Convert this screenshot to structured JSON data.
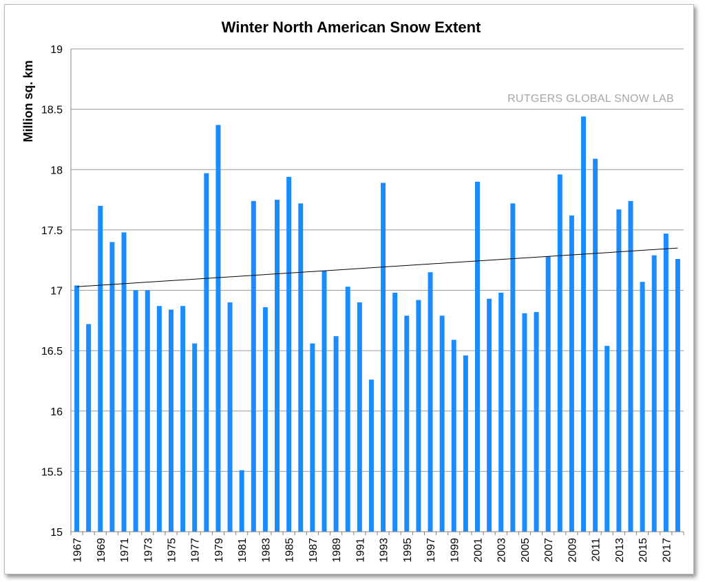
{
  "chart_data": {
    "type": "bar",
    "title": "Winter North American Snow Extent",
    "ylabel": "Million sq. km",
    "xlabel": "",
    "annotation": "RUTGERS GLOBAL SNOW LAB",
    "ylim": [
      15,
      19
    ],
    "yticks": [
      15,
      15.5,
      16,
      16.5,
      17,
      17.5,
      18,
      18.5,
      19
    ],
    "grid": true,
    "bar_color": "#1a8cff",
    "trendline": {
      "color": "#000000",
      "start": 17.03,
      "end": 17.35
    },
    "categories": [
      "1967",
      "1968",
      "1969",
      "1970",
      "1971",
      "1972",
      "1973",
      "1974",
      "1975",
      "1976",
      "1977",
      "1978",
      "1979",
      "1980",
      "1981",
      "1982",
      "1983",
      "1984",
      "1985",
      "1986",
      "1987",
      "1988",
      "1989",
      "1990",
      "1991",
      "1992",
      "1993",
      "1994",
      "1995",
      "1996",
      "1997",
      "1998",
      "1999",
      "2000",
      "2001",
      "2002",
      "2003",
      "2004",
      "2005",
      "2006",
      "2007",
      "2008",
      "2009",
      "2010",
      "2011",
      "2012",
      "2013",
      "2014",
      "2015",
      "2016",
      "2017",
      "2018"
    ],
    "values": [
      17.04,
      16.72,
      17.7,
      17.4,
      17.48,
      17.0,
      17.0,
      16.87,
      16.84,
      16.87,
      16.56,
      17.97,
      18.37,
      16.9,
      15.51,
      17.74,
      16.86,
      17.75,
      17.94,
      17.72,
      16.56,
      17.16,
      16.62,
      17.03,
      16.9,
      16.26,
      17.89,
      16.98,
      16.79,
      16.92,
      17.15,
      16.79,
      16.59,
      16.46,
      17.9,
      16.93,
      16.98,
      17.72,
      16.81,
      16.82,
      17.28,
      17.96,
      17.62,
      18.44,
      18.09,
      16.54,
      17.67,
      17.74,
      17.07,
      17.29,
      17.47,
      17.26
    ]
  }
}
